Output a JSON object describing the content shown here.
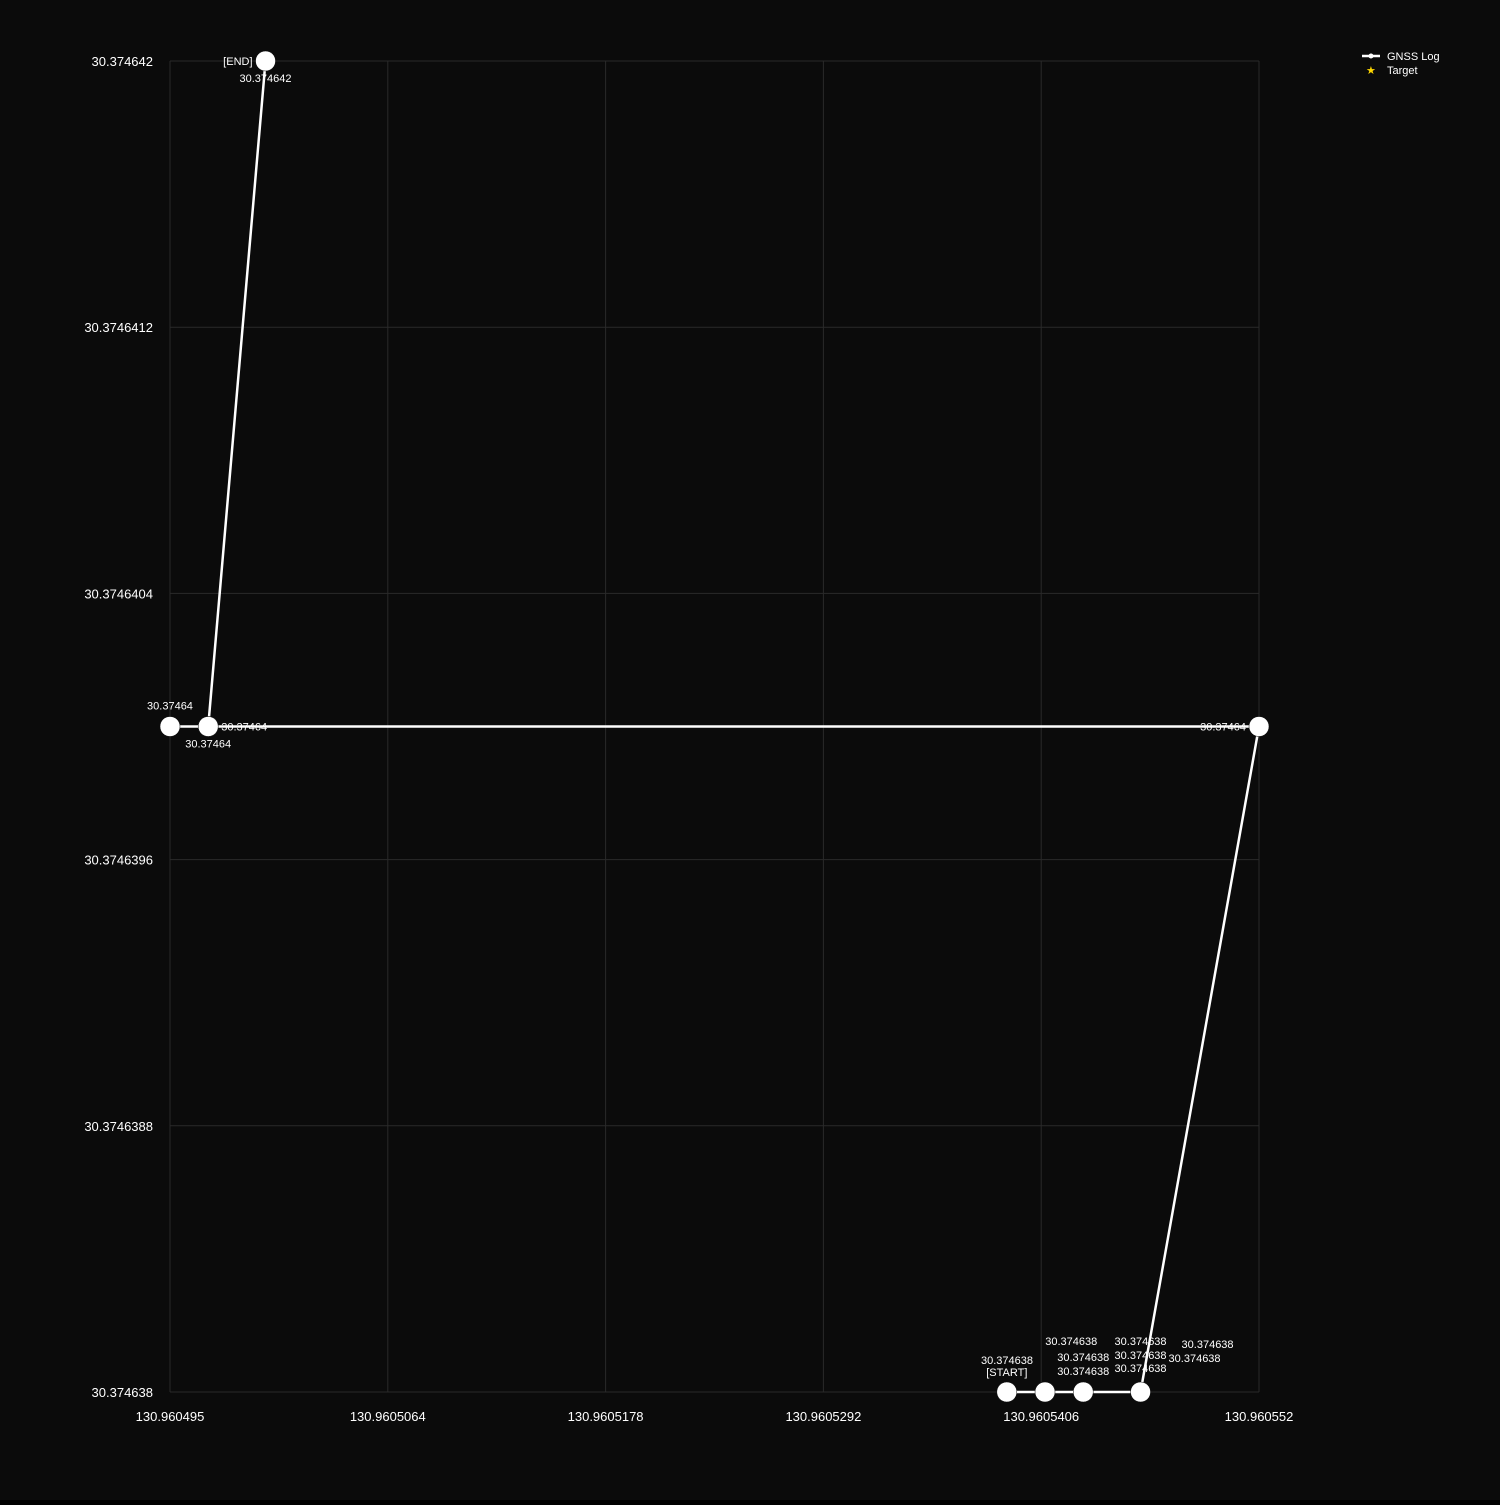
{
  "chart_data": {
    "type": "line",
    "title": "",
    "xlabel": "",
    "ylabel": "",
    "xlim": [
      130.960495,
      130.960552
    ],
    "ylim": [
      30.374638,
      30.374642
    ],
    "grid": true,
    "legend_position": "top-right",
    "x_ticks": [
      "130.960495",
      "130.9605064",
      "130.9605178",
      "130.9605292",
      "130.9605406",
      "130.960552"
    ],
    "y_ticks": [
      "30.374638",
      "30.3746388",
      "30.3746396",
      "30.3746404",
      "30.3746412",
      "30.374642"
    ],
    "legend": [
      {
        "name": "GNSS Log",
        "marker": "line",
        "color": "#ffffff"
      },
      {
        "name": "Target",
        "marker": "star",
        "color": "#ffd700"
      }
    ],
    "series": [
      {
        "name": "GNSS Log",
        "color": "#ffffff",
        "points": [
          {
            "x": 130.9605388,
            "y": 30.374638
          },
          {
            "x": 130.9605408,
            "y": 30.374638
          },
          {
            "x": 130.9605428,
            "y": 30.374638
          },
          {
            "x": 130.9605458,
            "y": 30.374638
          },
          {
            "x": 130.960552,
            "y": 30.37464
          },
          {
            "x": 130.960497,
            "y": 30.37464
          },
          {
            "x": 130.960495,
            "y": 30.37464
          },
          {
            "x": 130.960497,
            "y": 30.37464
          },
          {
            "x": 130.9605,
            "y": 30.374642
          }
        ]
      }
    ],
    "annotations": [
      {
        "text": "[START]",
        "x": 130.9605388,
        "y": 30.374638,
        "anchor": "start-above"
      },
      {
        "text": "30.374638",
        "x": 130.9605408,
        "y": 30.374638,
        "anchor": "left-mid"
      },
      {
        "text": "30.374638",
        "x": 130.9605428,
        "y": 30.374638,
        "anchor": "above-1"
      },
      {
        "text": "30.374638",
        "x": 130.9605428,
        "y": 30.374638,
        "anchor": "above-2"
      },
      {
        "text": "30.374638",
        "x": 130.9605428,
        "y": 30.374638,
        "anchor": "above-3"
      },
      {
        "text": "30.374638",
        "x": 130.9605458,
        "y": 30.374638,
        "anchor": "above-1"
      },
      {
        "text": "30.374638",
        "x": 130.9605458,
        "y": 30.374638,
        "anchor": "above-2"
      },
      {
        "text": "30.374638",
        "x": 130.9605458,
        "y": 30.374638,
        "anchor": "above-3"
      },
      {
        "text": "30.374638",
        "x": 130.9605458,
        "y": 30.374638,
        "anchor": "right-mid"
      },
      {
        "text": "30.374638",
        "x": 130.9605458,
        "y": 30.374638,
        "anchor": "right-high"
      },
      {
        "text": "30.37464",
        "x": 130.960552,
        "y": 30.37464,
        "anchor": "left"
      },
      {
        "text": "30.37464",
        "x": 130.960497,
        "y": 30.37464,
        "anchor": "right"
      },
      {
        "text": "30.37464",
        "x": 130.960495,
        "y": 30.37464,
        "anchor": "above"
      },
      {
        "text": "30.37464",
        "x": 130.960497,
        "y": 30.37464,
        "anchor": "below"
      },
      {
        "text": "[END]",
        "x": 130.9605,
        "y": 30.374642,
        "anchor": "left"
      },
      {
        "text": "30.374642",
        "x": 130.9605,
        "y": 30.374642,
        "anchor": "below"
      }
    ]
  },
  "colors": {
    "background": "#0b0b0b",
    "grid": "#2a2a2a",
    "track": "#ffffff",
    "target": "#ffd700"
  }
}
